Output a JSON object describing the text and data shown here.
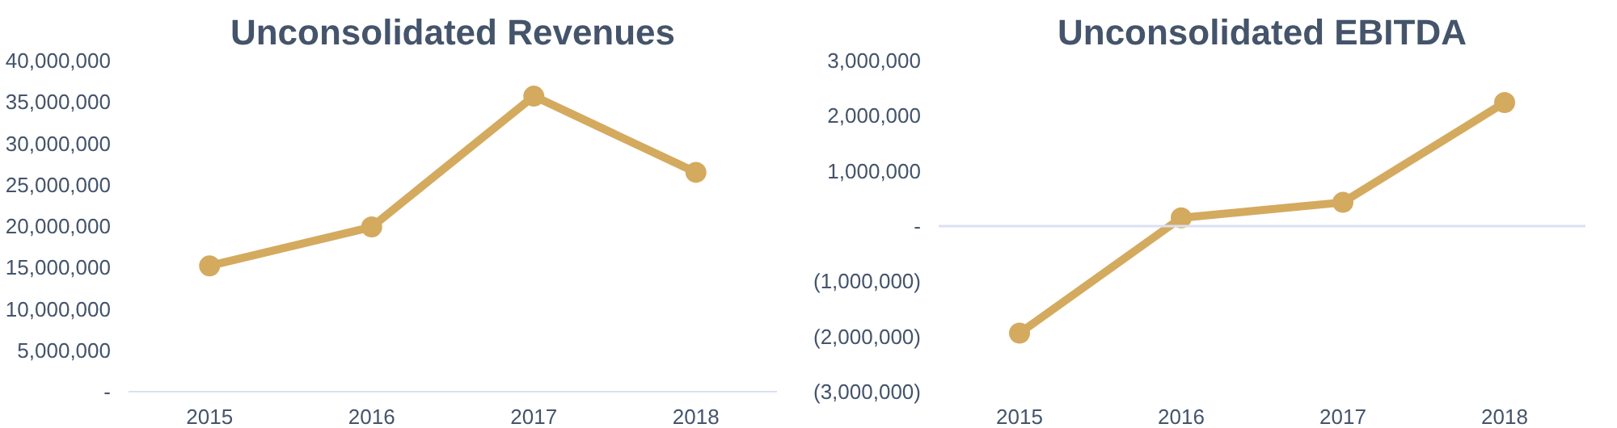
{
  "chart_data": [
    {
      "type": "line",
      "title": "Unconsolidated Revenues",
      "categories": [
        "2015",
        "2016",
        "2017",
        "2018"
      ],
      "series": [
        {
          "color": "#d4aa5f",
          "values": [
            15200000,
            19900000,
            35700000,
            26500000
          ]
        }
      ],
      "ylim": [
        0,
        40000000
      ],
      "yticks": [
        {
          "value": 0,
          "label": "-"
        },
        {
          "value": 5000000,
          "label": "5,000,000"
        },
        {
          "value": 10000000,
          "label": "10,000,000"
        },
        {
          "value": 15000000,
          "label": "15,000,000"
        },
        {
          "value": 20000000,
          "label": "20,000,000"
        },
        {
          "value": 25000000,
          "label": "25,000,000"
        },
        {
          "value": 30000000,
          "label": "30,000,000"
        },
        {
          "value": 35000000,
          "label": "35,000,000"
        },
        {
          "value": 40000000,
          "label": "40,000,000"
        }
      ],
      "grid": false,
      "marker": "circle",
      "line_style": "solid"
    },
    {
      "type": "line",
      "title": "Unconsolidated EBITDA",
      "categories": [
        "2015",
        "2016",
        "2017",
        "2018"
      ],
      "series": [
        {
          "color": "#d4aa5f",
          "values": [
            -1940000,
            150000,
            430000,
            2240000
          ]
        }
      ],
      "ylim": [
        -3000000,
        3000000
      ],
      "yticks": [
        {
          "value": -3000000,
          "label": "(3,000,000)"
        },
        {
          "value": -2000000,
          "label": "(2,000,000)"
        },
        {
          "value": -1000000,
          "label": "(1,000,000)"
        },
        {
          "value": 0,
          "label": "-"
        },
        {
          "value": 1000000,
          "label": "1,000,000"
        },
        {
          "value": 2000000,
          "label": "2,000,000"
        },
        {
          "value": 3000000,
          "label": "3,000,000"
        }
      ],
      "ref_lines": [
        {
          "axis": "y",
          "value": 0,
          "color": "#d9e1f2"
        }
      ],
      "grid": false,
      "marker": "circle",
      "line_style": "solid"
    }
  ]
}
